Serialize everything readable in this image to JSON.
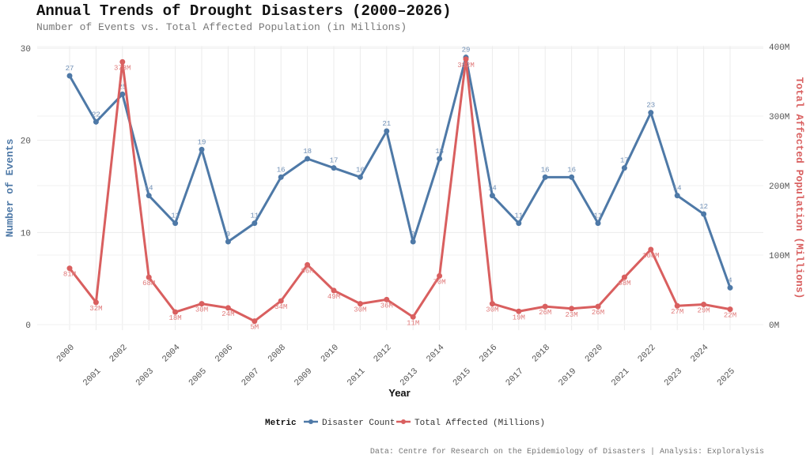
{
  "chart_data": {
    "type": "line",
    "title": "Annual Trends of Drought Disasters (2000–2026)",
    "subtitle": "Number of Events vs. Total Affected Population (in Millions)",
    "xlabel": "Year",
    "ylabel_left": "Number of Events",
    "ylabel_right": "Total Affected Population (Millions)",
    "caption": "Data: Centre for Research on the Epidemiology of Disasters | Analysis: Exploralysis",
    "x": [
      2000,
      2001,
      2002,
      2003,
      2004,
      2005,
      2006,
      2007,
      2008,
      2009,
      2010,
      2011,
      2012,
      2013,
      2014,
      2015,
      2016,
      2017,
      2018,
      2019,
      2020,
      2021,
      2022,
      2023,
      2024,
      2025
    ],
    "ylim_left": [
      0,
      30
    ],
    "yticks_left": [
      "0",
      "10",
      "20",
      "30"
    ],
    "ylim_right": [
      0,
      400
    ],
    "yticks_right": [
      "0M",
      "100M",
      "200M",
      "300M",
      "400M"
    ],
    "grid": true,
    "legend_position": "bottom",
    "legend_title": "Metric",
    "series": [
      {
        "name": "Disaster Count",
        "axis": "left",
        "color": "#4e79a7",
        "values": [
          27,
          22,
          25,
          14,
          11,
          19,
          9,
          11,
          16,
          18,
          17,
          16,
          21,
          9,
          18,
          29,
          14,
          11,
          16,
          16,
          11,
          17,
          23,
          14,
          12,
          4
        ],
        "labels": [
          "27",
          "22",
          "25",
          "14",
          "11",
          "19",
          "9",
          "11",
          "16",
          "18",
          "17",
          "16",
          "21",
          "9",
          "18",
          "29",
          "14",
          "11",
          "16",
          "16",
          "11",
          "17",
          "23",
          "14",
          "12",
          "4"
        ]
      },
      {
        "name": "Total Affected (Millions)",
        "axis": "right",
        "color": "#d95f5f",
        "values": [
          81,
          32,
          378,
          68,
          18,
          30,
          24,
          5,
          34,
          86,
          49,
          30,
          36,
          11,
          70,
          382,
          30,
          19,
          26,
          23,
          26,
          68,
          108,
          27,
          29,
          22
        ],
        "labels": [
          "81M",
          "32M",
          "378M",
          "68M",
          "18M",
          "30M",
          "24M",
          "5M",
          "34M",
          "86M",
          "49M",
          "30M",
          "36M",
          "11M",
          "70M",
          "382M",
          "30M",
          "19M",
          "26M",
          "23M",
          "26M",
          "68M",
          "108M",
          "27M",
          "29M",
          "22M"
        ]
      }
    ]
  }
}
